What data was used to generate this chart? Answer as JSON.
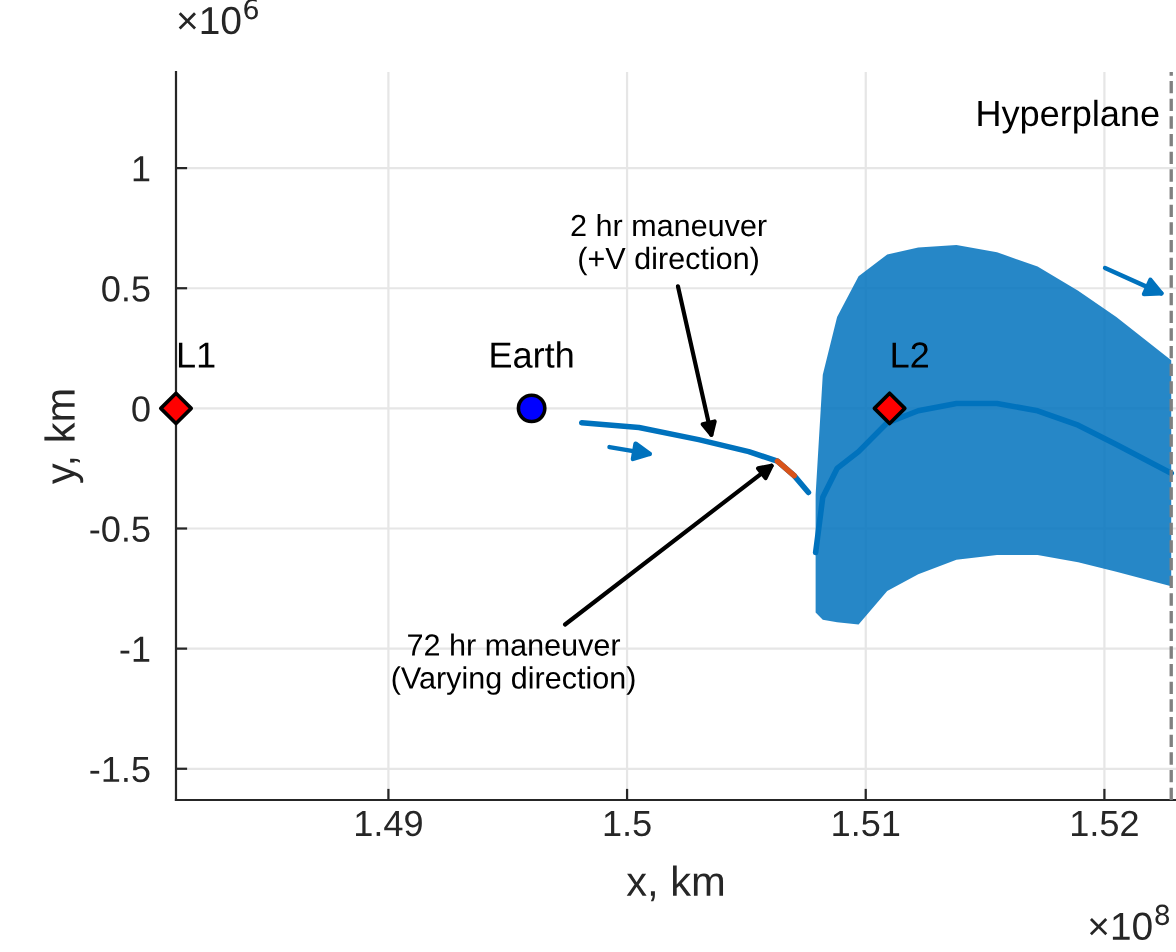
{
  "chart_data": {
    "type": "line",
    "xlabel": "x, km",
    "ylabel": "y, km",
    "xlim": [
      1.4811,
      1.523
    ],
    "ylim": [
      -1.63,
      1.4
    ],
    "xticks": [
      1.49,
      1.5,
      1.51,
      1.52
    ],
    "yticks": [
      -1.5,
      -1,
      -0.5,
      0,
      0.5,
      1
    ],
    "grid": true,
    "series": [
      {
        "name": "L1",
        "type": "scatter",
        "marker": "diamond",
        "color": "#ff0000",
        "x": [
          1.4811
        ],
        "values": [
          0
        ]
      },
      {
        "name": "Earth",
        "type": "scatter",
        "marker": "circle",
        "color": "#0000ff",
        "x": [
          1.496
        ],
        "values": [
          0
        ]
      },
      {
        "color": "#0072bd",
        "x": [
          1.5079,
          1.5082,
          1.5088,
          1.5097,
          1.5109,
          1.5122,
          1.5138,
          1.5155,
          1.5172,
          1.5189,
          1.5205,
          1.5228
        ],
        "values": [
          -0.6,
          -0.37,
          -0.25,
          -0.18,
          -0.06,
          -0.01,
          0.02,
          0.02,
          -0.01,
          -0.07,
          -0.15,
          -0.27
        ],
        "upper": [
          -0.36,
          0.14,
          0.38,
          0.55,
          0.64,
          0.67,
          0.68,
          0.65,
          0.59,
          0.49,
          0.38,
          0.2
        ],
        "lower": [
          -0.85,
          -0.88,
          -0.89,
          -0.9,
          -0.76,
          -0.69,
          -0.63,
          -0.61,
          -0.61,
          -0.64,
          -0.68,
          -0.74
        ]
      },
      {
        "color": "#0072bd",
        "x": [
          1.4981,
          1.5005,
          1.503,
          1.5051,
          1.5063,
          1.507,
          1.5076
        ],
        "values": [
          -0.06,
          -0.08,
          -0.13,
          -0.18,
          -0.22,
          -0.28,
          -0.35
        ]
      },
      {
        "color": "#d95319",
        "x": [
          1.5063,
          1.507
        ],
        "values": [
          -0.22,
          -0.28
        ]
      },
      {
        "name": "L2",
        "type": "scatter",
        "marker": "diamond",
        "color": "#ff0000",
        "x": [
          1.511
        ],
        "values": [
          0
        ]
      }
    ],
    "ref_lines": [
      {
        "axis": "x",
        "value": 1.5228,
        "label": "Hyperplane",
        "color": "#808080",
        "line_style": "dashed"
      }
    ],
    "annotations": [
      "×10$^{6}$",
      "×10$^{8}$",
      {
        "text": "2 hr maneuver\n(+V direction)",
        "x": 1.5036,
        "y": -0.14
      },
      {
        "text": "72 hr maneuver\n(Varying direction)",
        "x": 1.5063,
        "y": -0.22
      }
    ]
  }
}
